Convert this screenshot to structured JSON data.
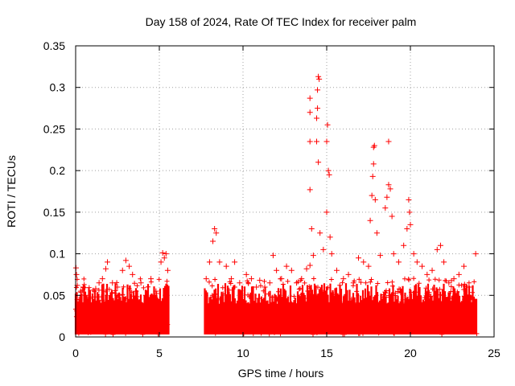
{
  "chart_data": {
    "type": "scatter",
    "title": "Day 158 of 2024, Rate Of TEC Index for receiver palm",
    "xlabel": "GPS time / hours",
    "ylabel": "ROTI / TECUs",
    "xlim": [
      0,
      25
    ],
    "ylim": [
      0,
      0.35
    ],
    "xticks": [
      0,
      5,
      10,
      15,
      20,
      25
    ],
    "xtick_labels": [
      "0",
      "5",
      "10",
      "15",
      "20",
      "25"
    ],
    "yticks": [
      0,
      0.05,
      0.1,
      0.15,
      0.2,
      0.25,
      0.3,
      0.35
    ],
    "ytick_labels": [
      "0",
      "0.05",
      "0.1",
      "0.15",
      "0.2",
      "0.25",
      "0.3",
      "0.35"
    ],
    "grid": true,
    "marker": "+",
    "color": "#ff0000",
    "data_gap_hours": [
      5.6,
      7.7
    ],
    "series": [
      {
        "name": "ROTI",
        "points": [
          [
            0.02,
            0.083
          ],
          [
            0.05,
            0.075
          ],
          [
            0.1,
            0.062
          ],
          [
            0.2,
            0.045
          ],
          [
            0.3,
            0.055
          ],
          [
            0.45,
            0.06
          ],
          [
            0.6,
            0.05
          ],
          [
            0.8,
            0.048
          ],
          [
            1.0,
            0.04
          ],
          [
            1.2,
            0.058
          ],
          [
            1.4,
            0.065
          ],
          [
            1.6,
            0.07
          ],
          [
            1.8,
            0.082
          ],
          [
            1.9,
            0.09
          ],
          [
            2.2,
            0.065
          ],
          [
            2.5,
            0.06
          ],
          [
            2.8,
            0.08
          ],
          [
            3.0,
            0.092
          ],
          [
            3.2,
            0.085
          ],
          [
            3.4,
            0.075
          ],
          [
            3.6,
            0.055
          ],
          [
            3.9,
            0.065
          ],
          [
            4.2,
            0.05
          ],
          [
            4.5,
            0.07
          ],
          [
            4.8,
            0.055
          ],
          [
            5.1,
            0.09
          ],
          [
            5.2,
            0.101
          ],
          [
            5.3,
            0.095
          ],
          [
            5.4,
            0.1
          ],
          [
            5.5,
            0.08
          ],
          [
            7.8,
            0.07
          ],
          [
            8.0,
            0.09
          ],
          [
            8.2,
            0.115
          ],
          [
            8.3,
            0.13
          ],
          [
            8.4,
            0.125
          ],
          [
            8.6,
            0.09
          ],
          [
            9.0,
            0.085
          ],
          [
            9.3,
            0.07
          ],
          [
            9.5,
            0.09
          ],
          [
            9.8,
            0.065
          ],
          [
            10.2,
            0.075
          ],
          [
            10.5,
            0.07
          ],
          [
            10.8,
            0.06
          ],
          [
            11.0,
            0.068
          ],
          [
            11.3,
            0.06
          ],
          [
            11.6,
            0.065
          ],
          [
            11.8,
            0.098
          ],
          [
            12.0,
            0.08
          ],
          [
            12.3,
            0.07
          ],
          [
            12.6,
            0.085
          ],
          [
            12.9,
            0.08
          ],
          [
            13.2,
            0.065
          ],
          [
            13.5,
            0.07
          ],
          [
            13.8,
            0.082
          ],
          [
            14.0,
            0.086
          ],
          [
            14.0,
            0.177
          ],
          [
            14.0,
            0.235
          ],
          [
            14.0,
            0.27
          ],
          [
            14.0,
            0.287
          ],
          [
            14.1,
            0.13
          ],
          [
            14.2,
            0.098
          ],
          [
            14.4,
            0.235
          ],
          [
            14.4,
            0.263
          ],
          [
            14.45,
            0.275
          ],
          [
            14.45,
            0.297
          ],
          [
            14.5,
            0.313
          ],
          [
            14.55,
            0.31
          ],
          [
            14.5,
            0.21
          ],
          [
            14.6,
            0.125
          ],
          [
            14.8,
            0.105
          ],
          [
            15.0,
            0.235
          ],
          [
            15.05,
            0.255
          ],
          [
            15.1,
            0.2
          ],
          [
            15.15,
            0.195
          ],
          [
            15.0,
            0.15
          ],
          [
            15.2,
            0.12
          ],
          [
            15.3,
            0.1
          ],
          [
            15.6,
            0.08
          ],
          [
            16.0,
            0.07
          ],
          [
            16.3,
            0.075
          ],
          [
            16.6,
            0.065
          ],
          [
            16.9,
            0.095
          ],
          [
            17.2,
            0.09
          ],
          [
            17.5,
            0.085
          ],
          [
            17.6,
            0.14
          ],
          [
            17.7,
            0.17
          ],
          [
            17.75,
            0.193
          ],
          [
            17.8,
            0.208
          ],
          [
            17.8,
            0.228
          ],
          [
            17.85,
            0.23
          ],
          [
            17.9,
            0.165
          ],
          [
            18.0,
            0.125
          ],
          [
            18.2,
            0.098
          ],
          [
            18.5,
            0.155
          ],
          [
            18.6,
            0.168
          ],
          [
            18.7,
            0.183
          ],
          [
            18.7,
            0.235
          ],
          [
            18.8,
            0.178
          ],
          [
            18.9,
            0.145
          ],
          [
            19.0,
            0.1
          ],
          [
            19.3,
            0.09
          ],
          [
            19.6,
            0.11
          ],
          [
            19.8,
            0.13
          ],
          [
            19.9,
            0.165
          ],
          [
            19.95,
            0.15
          ],
          [
            20.0,
            0.135
          ],
          [
            20.2,
            0.1
          ],
          [
            20.4,
            0.09
          ],
          [
            20.7,
            0.085
          ],
          [
            21.0,
            0.075
          ],
          [
            21.3,
            0.08
          ],
          [
            21.6,
            0.105
          ],
          [
            21.8,
            0.11
          ],
          [
            22.0,
            0.09
          ],
          [
            22.3,
            0.065
          ],
          [
            22.6,
            0.07
          ],
          [
            22.9,
            0.075
          ],
          [
            23.2,
            0.085
          ],
          [
            23.5,
            0.06
          ],
          [
            23.9,
            0.1
          ]
        ]
      }
    ]
  }
}
